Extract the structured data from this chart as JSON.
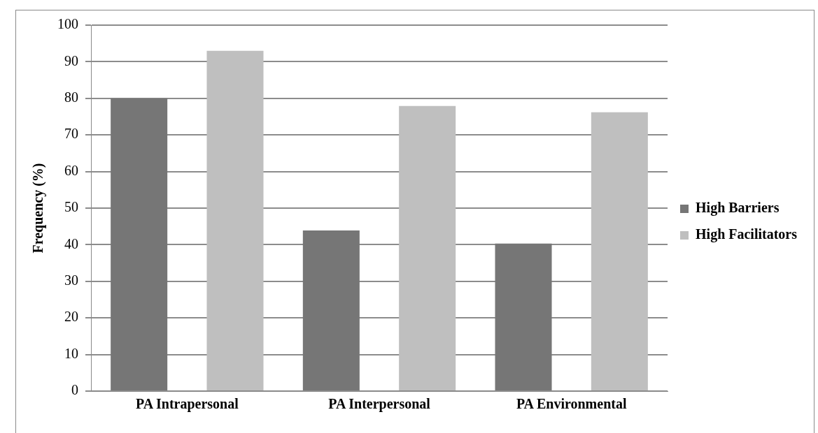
{
  "chart_data": {
    "type": "bar",
    "ylabel": "Frequency (%)",
    "categories": [
      "PA Intrapersonal",
      "PA Interpersonal",
      "PA Environmental"
    ],
    "series": [
      {
        "name": "High Barriers",
        "color": "#767676",
        "values": [
          80,
          43.9,
          40.3
        ]
      },
      {
        "name": "High Facilitators",
        "color": "#bfbfbf",
        "values": [
          93,
          77.9,
          76.2
        ]
      }
    ],
    "ylim": [
      0,
      100
    ],
    "yticks": [
      0,
      10,
      20,
      30,
      40,
      50,
      60,
      70,
      80,
      90,
      100
    ],
    "grid": "y",
    "legend": "right"
  }
}
